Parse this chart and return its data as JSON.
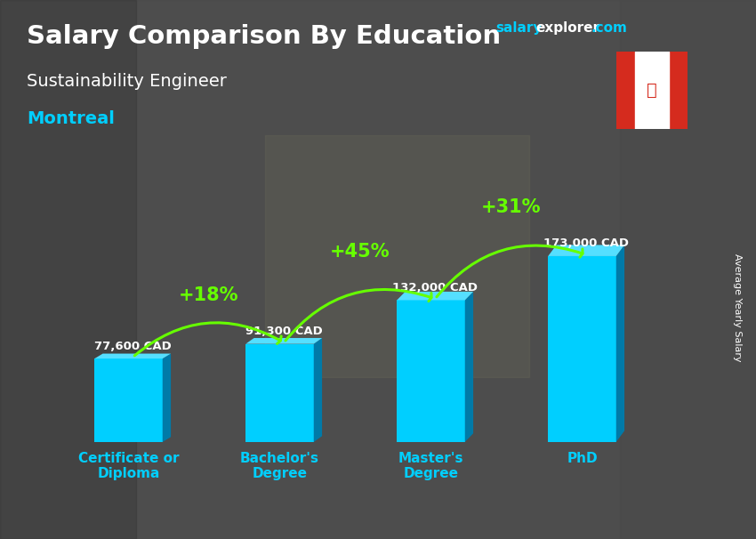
{
  "title": "Salary Comparison By Education",
  "subtitle": "Sustainability Engineer",
  "location": "Montreal",
  "watermark_salary": "salary",
  "watermark_explorer": "explorer",
  "watermark_com": ".com",
  "ylabel": "Average Yearly Salary",
  "categories": [
    "Certificate or\nDiploma",
    "Bachelor's\nDegree",
    "Master's\nDegree",
    "PhD"
  ],
  "values": [
    77600,
    91300,
    132000,
    173000
  ],
  "value_labels": [
    "77,600 CAD",
    "91,300 CAD",
    "132,000 CAD",
    "173,000 CAD"
  ],
  "pct_changes": [
    "+18%",
    "+45%",
    "+31%"
  ],
  "bar_color_face": "#00CFFF",
  "bar_color_dark": "#007AA8",
  "bar_color_top": "#55DFFF",
  "bg_color": "#606060",
  "title_color": "#FFFFFF",
  "subtitle_color": "#FFFFFF",
  "location_color": "#00CFFF",
  "value_label_color": "#FFFFFF",
  "pct_color": "#66FF00",
  "arrow_color": "#66FF00",
  "ylabel_color": "#FFFFFF",
  "xtick_color": "#00CFFF",
  "watermark_salary_color": "#00CFFF",
  "watermark_explorer_color": "#FFFFFF",
  "watermark_com_color": "#00CFFF",
  "figsize": [
    8.5,
    6.06
  ],
  "dpi": 100
}
